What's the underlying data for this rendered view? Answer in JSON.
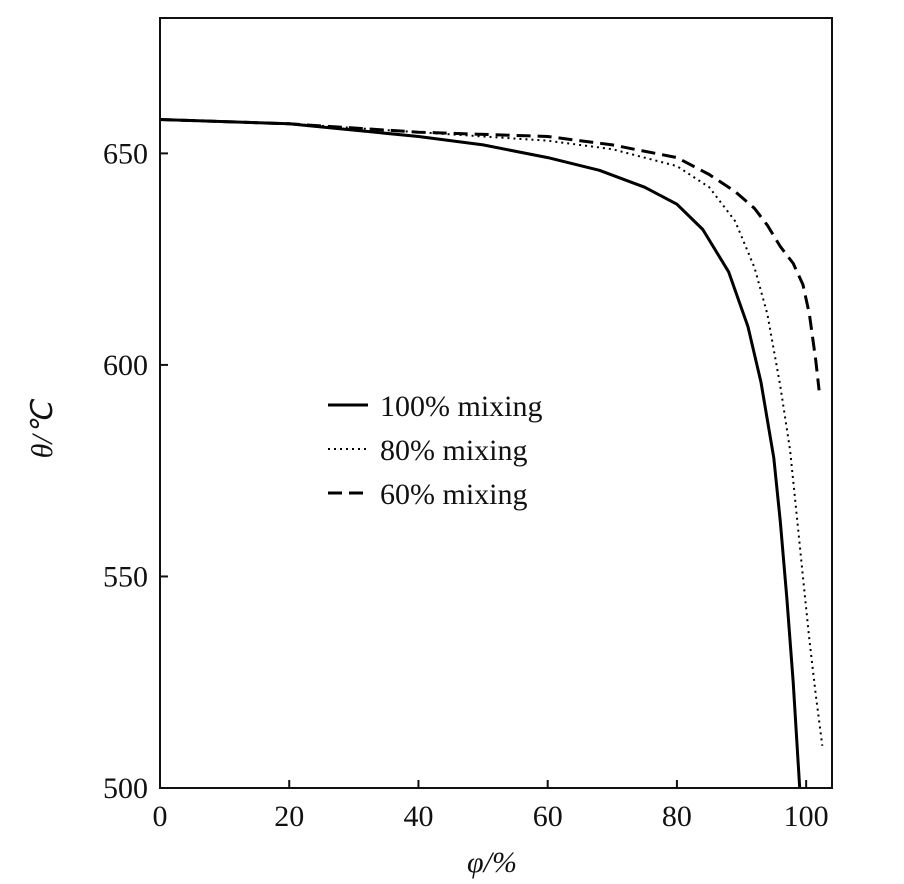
{
  "chart_data": {
    "type": "line",
    "xlabel": "φ/%",
    "ylabel": "θ/℃",
    "xlim": [
      0,
      104
    ],
    "ylim": [
      500,
      682
    ],
    "xticks": [
      0,
      20,
      40,
      60,
      80,
      100
    ],
    "yticks": [
      500,
      550,
      600,
      650
    ],
    "grid": false,
    "legend_position": "center-left",
    "series": [
      {
        "name": "100% mixing",
        "style": "solid",
        "color": "#000000",
        "x": [
          0,
          20,
          40,
          50,
          60,
          68,
          75,
          80,
          84,
          88,
          91,
          93,
          95,
          96,
          97,
          98,
          98.6,
          99
        ],
        "y": [
          658,
          657,
          654,
          652,
          649,
          646,
          642,
          638,
          632,
          622,
          609,
          596,
          578,
          563,
          545,
          525,
          510,
          500
        ]
      },
      {
        "name": "80% mixing",
        "style": "dotted",
        "color": "#000000",
        "x": [
          0,
          20,
          40,
          60,
          70,
          80,
          85,
          89,
          92,
          94,
          96,
          97.5,
          98.5,
          99.5,
          100.5,
          101.5,
          102.5
        ],
        "y": [
          658,
          657,
          655,
          653,
          651,
          647,
          642,
          634,
          623,
          612,
          595,
          580,
          565,
          550,
          535,
          522,
          510
        ]
      },
      {
        "name": "60% mixing",
        "style": "dashed",
        "color": "#000000",
        "x": [
          0,
          20,
          40,
          60,
          70,
          80,
          85,
          89,
          92,
          94,
          96,
          98,
          99.5,
          100.5,
          101.5,
          102
        ],
        "y": [
          658,
          657,
          655,
          654,
          652,
          649,
          645,
          641,
          637,
          633,
          628,
          624,
          619,
          612,
          601,
          594
        ]
      }
    ]
  }
}
